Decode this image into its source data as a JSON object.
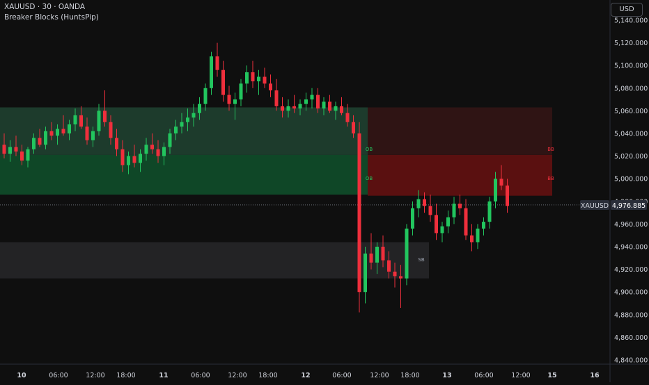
{
  "header": {
    "symbol_line": "XAUUSD · 30 · OANDA",
    "indicator_name": "Breaker Blocks (HuntsPip)"
  },
  "currency_button": "USD",
  "price_badge": {
    "symbol": "XAUUSD",
    "price": "4,976.885"
  },
  "colors": {
    "background": "#0f0f0f",
    "up_candle": "#26a69a",
    "up_candle_bright": "#22c55e",
    "down_candle": "#ef2f3c",
    "bull_zone_light": "#1d3b2c",
    "bull_zone_dark": "#0f4727",
    "bear_zone_light": "#2f1414",
    "bear_zone_dark": "#5a1010",
    "gray_zone": "#232325",
    "axis_text": "#d1d4dc"
  },
  "chart_data": {
    "type": "candlestick",
    "title": "XAUUSD · 30 · OANDA",
    "y_axis": {
      "ticks": [
        "5,140.000",
        "5,120.000",
        "5,100.000",
        "5,080.000",
        "5,060.000",
        "5,040.000",
        "5,020.000",
        "5,000.000",
        "4,980.000",
        "4,960.000",
        "4,940.000",
        "4,920.000",
        "4,900.000",
        "4,880.000",
        "4,860.000",
        "4,840.000"
      ],
      "range": [
        4835,
        5150
      ]
    },
    "x_axis": {
      "ticks": [
        "10",
        "06:00",
        "12:00",
        "18:00",
        "11",
        "06:00",
        "12:00",
        "18:00",
        "12",
        "06:00",
        "12:00",
        "18:00",
        "13",
        "06:00",
        "12:00",
        "15",
        "16"
      ]
    },
    "current_price": 4976.885,
    "zones": [
      {
        "kind": "bullish",
        "shade": "light",
        "price_top": 5063,
        "price_bottom": 5034,
        "label": ""
      },
      {
        "kind": "bullish",
        "shade": "light",
        "price_top": 5063,
        "price_bottom": 5021,
        "label": ""
      },
      {
        "kind": "bullish",
        "shade": "dark",
        "price_top": 5021,
        "price_bottom": 4986,
        "label": "OB"
      },
      {
        "kind": "bearish",
        "shade": "light",
        "price_top": 5063,
        "price_bottom": 5021,
        "label": "BB"
      },
      {
        "kind": "bearish",
        "shade": "dark",
        "price_top": 5021,
        "price_bottom": 4985,
        "label": "BB"
      },
      {
        "kind": "neutral",
        "shade": "gray",
        "price_top": 4944,
        "price_bottom": 4912,
        "label": "SB"
      }
    ],
    "zone_labels": [
      {
        "text": "OB",
        "color": "#22c55e"
      },
      {
        "text": "OB",
        "color": "#22c55e"
      },
      {
        "text": "BB",
        "color": "#ef2f3c"
      },
      {
        "text": "BB",
        "color": "#ef2f3c"
      },
      {
        "text": "SB",
        "color": "#9ca3af"
      }
    ],
    "candles": [
      [
        5030,
        5040,
        5018,
        5022
      ],
      [
        5022,
        5034,
        5015,
        5028
      ],
      [
        5028,
        5038,
        5020,
        5024
      ],
      [
        5024,
        5030,
        5012,
        5016
      ],
      [
        5016,
        5028,
        5010,
        5026
      ],
      [
        5026,
        5040,
        5022,
        5036
      ],
      [
        5036,
        5044,
        5028,
        5030
      ],
      [
        5030,
        5046,
        5026,
        5042
      ],
      [
        5042,
        5050,
        5034,
        5038
      ],
      [
        5038,
        5048,
        5030,
        5044
      ],
      [
        5044,
        5056,
        5038,
        5040
      ],
      [
        5040,
        5052,
        5034,
        5048
      ],
      [
        5048,
        5062,
        5042,
        5056
      ],
      [
        5056,
        5064,
        5044,
        5046
      ],
      [
        5046,
        5054,
        5030,
        5034
      ],
      [
        5034,
        5046,
        5028,
        5042
      ],
      [
        5042,
        5066,
        5038,
        5060
      ],
      [
        5060,
        5078,
        5046,
        5050
      ],
      [
        5050,
        5056,
        5030,
        5036
      ],
      [
        5036,
        5044,
        5020,
        5026
      ],
      [
        5026,
        5034,
        5006,
        5012
      ],
      [
        5012,
        5024,
        5004,
        5020
      ],
      [
        5020,
        5030,
        5010,
        5014
      ],
      [
        5014,
        5026,
        5006,
        5022
      ],
      [
        5022,
        5036,
        5016,
        5030
      ],
      [
        5030,
        5040,
        5022,
        5026
      ],
      [
        5026,
        5034,
        5014,
        5020
      ],
      [
        5020,
        5032,
        5012,
        5028
      ],
      [
        5028,
        5044,
        5022,
        5040
      ],
      [
        5040,
        5052,
        5034,
        5046
      ],
      [
        5046,
        5058,
        5040,
        5050
      ],
      [
        5050,
        5062,
        5042,
        5054
      ],
      [
        5054,
        5066,
        5046,
        5058
      ],
      [
        5058,
        5072,
        5052,
        5066
      ],
      [
        5066,
        5084,
        5060,
        5080
      ],
      [
        5080,
        5112,
        5074,
        5108
      ],
      [
        5108,
        5120,
        5090,
        5096
      ],
      [
        5096,
        5104,
        5068,
        5074
      ],
      [
        5074,
        5082,
        5060,
        5066
      ],
      [
        5066,
        5076,
        5052,
        5070
      ],
      [
        5070,
        5088,
        5064,
        5084
      ],
      [
        5084,
        5100,
        5076,
        5094
      ],
      [
        5094,
        5104,
        5080,
        5086
      ],
      [
        5086,
        5096,
        5074,
        5090
      ],
      [
        5090,
        5098,
        5080,
        5084
      ],
      [
        5084,
        5092,
        5072,
        5078
      ],
      [
        5078,
        5088,
        5060,
        5064
      ],
      [
        5064,
        5072,
        5054,
        5060
      ],
      [
        5060,
        5070,
        5054,
        5064
      ],
      [
        5064,
        5074,
        5058,
        5062
      ],
      [
        5062,
        5070,
        5056,
        5066
      ],
      [
        5066,
        5076,
        5060,
        5070
      ],
      [
        5070,
        5080,
        5062,
        5074
      ],
      [
        5074,
        5080,
        5058,
        5062
      ],
      [
        5062,
        5072,
        5056,
        5068
      ],
      [
        5068,
        5074,
        5058,
        5060
      ],
      [
        5060,
        5068,
        5052,
        5064
      ],
      [
        5064,
        5072,
        5056,
        5058
      ],
      [
        5058,
        5066,
        5046,
        5050
      ],
      [
        5050,
        5056,
        5036,
        5040
      ],
      [
        5040,
        5050,
        4882,
        4900
      ],
      [
        4900,
        4940,
        4890,
        4934
      ],
      [
        4934,
        4952,
        4920,
        4926
      ],
      [
        4926,
        4944,
        4916,
        4940
      ],
      [
        4940,
        4950,
        4922,
        4928
      ],
      [
        4928,
        4936,
        4912,
        4918
      ],
      [
        4918,
        4926,
        4904,
        4914
      ],
      [
        4914,
        4924,
        4886,
        4912
      ],
      [
        4912,
        4960,
        4906,
        4956
      ],
      [
        4956,
        4980,
        4950,
        4974
      ],
      [
        4974,
        4990,
        4966,
        4982
      ],
      [
        4982,
        4988,
        4970,
        4976
      ],
      [
        4976,
        4986,
        4962,
        4968
      ],
      [
        4968,
        4978,
        4946,
        4952
      ],
      [
        4952,
        4962,
        4944,
        4958
      ],
      [
        4958,
        4972,
        4952,
        4966
      ],
      [
        4966,
        4984,
        4960,
        4978
      ],
      [
        4978,
        4986,
        4968,
        4974
      ],
      [
        4974,
        4982,
        4946,
        4950
      ],
      [
        4950,
        4960,
        4936,
        4944
      ],
      [
        4944,
        4960,
        4938,
        4956
      ],
      [
        4956,
        4966,
        4950,
        4962
      ],
      [
        4962,
        4984,
        4956,
        4980
      ],
      [
        4980,
        5006,
        4974,
        5000
      ],
      [
        5000,
        5012,
        4990,
        4994
      ],
      [
        4994,
        5000,
        4970,
        4976
      ]
    ]
  }
}
